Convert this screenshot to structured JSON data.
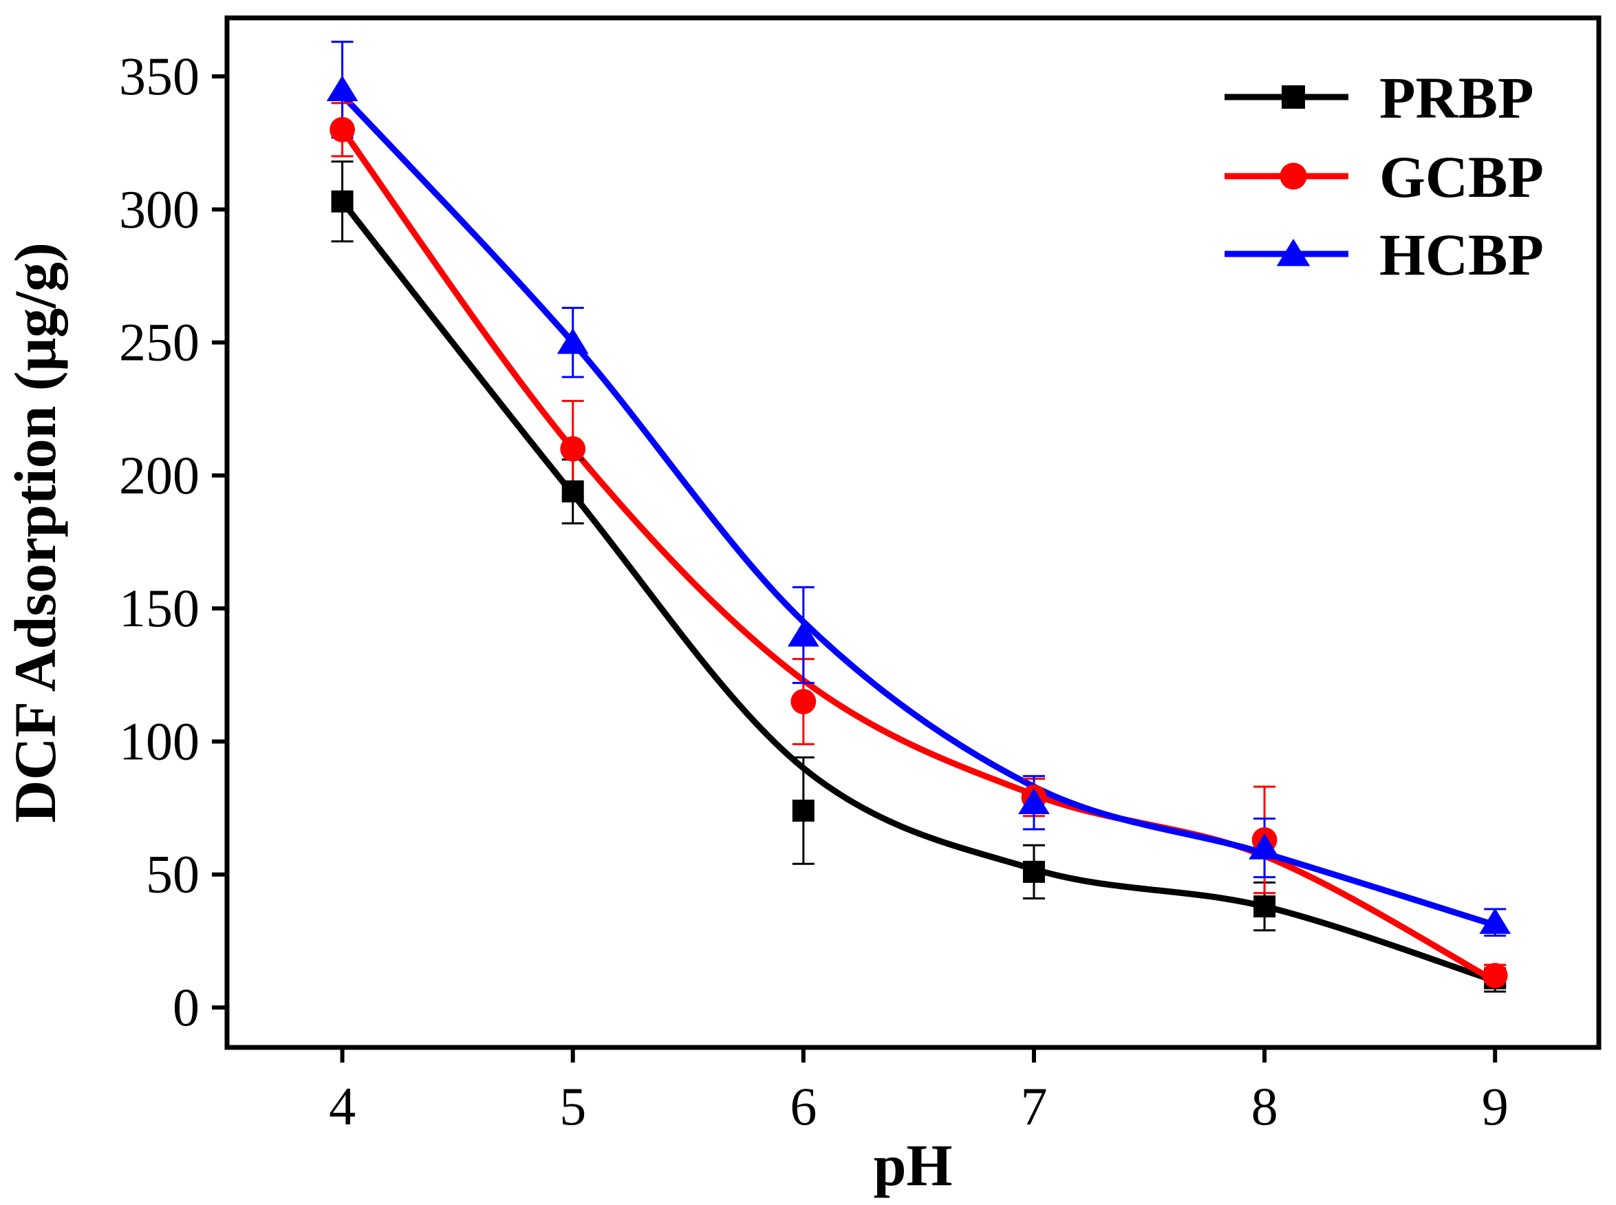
{
  "chart_data": {
    "type": "line",
    "xlabel": "pH",
    "ylabel": "DCF Adsorption (μg/g)",
    "xlim": [
      3.5,
      9.45
    ],
    "ylim": [
      -15,
      372
    ],
    "xticks": [
      4,
      5,
      6,
      7,
      8,
      9
    ],
    "yticks": [
      0,
      50,
      100,
      150,
      200,
      250,
      300,
      350
    ],
    "legend_position": "top-right",
    "series": [
      {
        "name": "PRBP",
        "color": "#000000",
        "marker": "square",
        "x": [
          4,
          5,
          6,
          7,
          8,
          9
        ],
        "y": [
          303,
          194,
          74,
          51,
          38,
          11
        ],
        "error": [
          15,
          12,
          20,
          10,
          9,
          5
        ]
      },
      {
        "name": "GCBP",
        "color": "#ff0000",
        "marker": "circle",
        "x": [
          4,
          5,
          6,
          7,
          8,
          9
        ],
        "y": [
          330,
          210,
          115,
          79,
          63,
          12
        ],
        "error": [
          10,
          18,
          16,
          7,
          20,
          4
        ]
      },
      {
        "name": "HCBP",
        "color": "#0000ff",
        "marker": "triangle",
        "x": [
          4,
          5,
          6,
          7,
          8,
          9
        ],
        "y": [
          345,
          250,
          140,
          77,
          60,
          32
        ],
        "error": [
          18,
          13,
          18,
          10,
          11,
          5
        ]
      }
    ],
    "fit_curves": [
      {
        "name": "PRBP",
        "y": [
          303,
          193,
          90,
          52,
          38,
          10
        ]
      },
      {
        "name": "GCBP",
        "y": [
          330,
          210,
          123,
          80,
          57,
          10
        ]
      },
      {
        "name": "HCBP",
        "y": [
          343,
          250,
          145,
          83,
          58,
          31
        ]
      }
    ]
  }
}
